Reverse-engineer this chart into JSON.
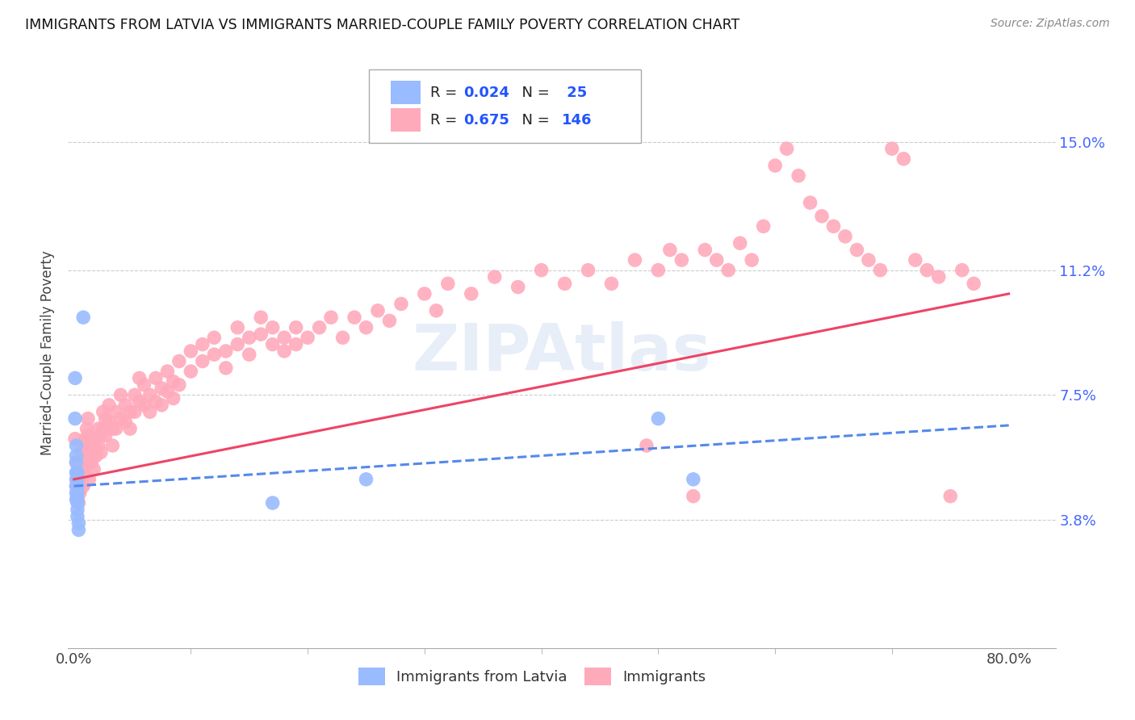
{
  "title": "IMMIGRANTS FROM LATVIA VS IMMIGRANTS MARRIED-COUPLE FAMILY POVERTY CORRELATION CHART",
  "source": "Source: ZipAtlas.com",
  "ylabel": "Married-Couple Family Poverty",
  "yticks": [
    "15.0%",
    "11.2%",
    "7.5%",
    "3.8%"
  ],
  "ytick_vals": [
    0.15,
    0.112,
    0.075,
    0.038
  ],
  "color_blue": "#99bbff",
  "color_pink": "#ffaabb",
  "color_trendline_blue": "#5588ee",
  "color_trendline_pink": "#ee4466",
  "watermark": "ZIPAtlas",
  "xmin": 0.0,
  "xmax": 0.8,
  "ymin": 0.0,
  "ymax": 0.175,
  "blue_scatter": [
    [
      0.001,
      0.08
    ],
    [
      0.001,
      0.068
    ],
    [
      0.002,
      0.06
    ],
    [
      0.002,
      0.057
    ],
    [
      0.002,
      0.055
    ],
    [
      0.002,
      0.052
    ],
    [
      0.002,
      0.05
    ],
    [
      0.002,
      0.048
    ],
    [
      0.002,
      0.046
    ],
    [
      0.002,
      0.044
    ],
    [
      0.003,
      0.052
    ],
    [
      0.003,
      0.05
    ],
    [
      0.003,
      0.048
    ],
    [
      0.003,
      0.046
    ],
    [
      0.003,
      0.044
    ],
    [
      0.003,
      0.043
    ],
    [
      0.003,
      0.041
    ],
    [
      0.003,
      0.039
    ],
    [
      0.004,
      0.037
    ],
    [
      0.004,
      0.035
    ],
    [
      0.008,
      0.098
    ],
    [
      0.17,
      0.043
    ],
    [
      0.25,
      0.05
    ],
    [
      0.5,
      0.068
    ],
    [
      0.53,
      0.05
    ]
  ],
  "pink_scatter": [
    [
      0.001,
      0.062
    ],
    [
      0.002,
      0.055
    ],
    [
      0.002,
      0.048
    ],
    [
      0.003,
      0.052
    ],
    [
      0.003,
      0.048
    ],
    [
      0.003,
      0.045
    ],
    [
      0.004,
      0.05
    ],
    [
      0.004,
      0.046
    ],
    [
      0.004,
      0.043
    ],
    [
      0.005,
      0.055
    ],
    [
      0.005,
      0.05
    ],
    [
      0.005,
      0.046
    ],
    [
      0.006,
      0.058
    ],
    [
      0.006,
      0.052
    ],
    [
      0.006,
      0.048
    ],
    [
      0.007,
      0.055
    ],
    [
      0.007,
      0.05
    ],
    [
      0.008,
      0.058
    ],
    [
      0.008,
      0.053
    ],
    [
      0.008,
      0.048
    ],
    [
      0.009,
      0.06
    ],
    [
      0.009,
      0.055
    ],
    [
      0.01,
      0.062
    ],
    [
      0.01,
      0.057
    ],
    [
      0.011,
      0.065
    ],
    [
      0.011,
      0.06
    ],
    [
      0.012,
      0.068
    ],
    [
      0.012,
      0.063
    ],
    [
      0.013,
      0.055
    ],
    [
      0.013,
      0.05
    ],
    [
      0.015,
      0.06
    ],
    [
      0.015,
      0.055
    ],
    [
      0.017,
      0.058
    ],
    [
      0.017,
      0.053
    ],
    [
      0.019,
      0.062
    ],
    [
      0.019,
      0.057
    ],
    [
      0.021,
      0.065
    ],
    [
      0.021,
      0.06
    ],
    [
      0.023,
      0.063
    ],
    [
      0.023,
      0.058
    ],
    [
      0.025,
      0.07
    ],
    [
      0.025,
      0.065
    ],
    [
      0.027,
      0.068
    ],
    [
      0.027,
      0.063
    ],
    [
      0.03,
      0.072
    ],
    [
      0.03,
      0.067
    ],
    [
      0.033,
      0.065
    ],
    [
      0.033,
      0.06
    ],
    [
      0.036,
      0.07
    ],
    [
      0.036,
      0.065
    ],
    [
      0.04,
      0.075
    ],
    [
      0.04,
      0.068
    ],
    [
      0.044,
      0.072
    ],
    [
      0.044,
      0.067
    ],
    [
      0.048,
      0.07
    ],
    [
      0.048,
      0.065
    ],
    [
      0.052,
      0.075
    ],
    [
      0.052,
      0.07
    ],
    [
      0.056,
      0.08
    ],
    [
      0.056,
      0.073
    ],
    [
      0.06,
      0.078
    ],
    [
      0.06,
      0.072
    ],
    [
      0.065,
      0.075
    ],
    [
      0.065,
      0.07
    ],
    [
      0.07,
      0.08
    ],
    [
      0.07,
      0.073
    ],
    [
      0.075,
      0.077
    ],
    [
      0.075,
      0.072
    ],
    [
      0.08,
      0.082
    ],
    [
      0.08,
      0.076
    ],
    [
      0.085,
      0.079
    ],
    [
      0.085,
      0.074
    ],
    [
      0.09,
      0.085
    ],
    [
      0.09,
      0.078
    ],
    [
      0.1,
      0.088
    ],
    [
      0.1,
      0.082
    ],
    [
      0.11,
      0.09
    ],
    [
      0.11,
      0.085
    ],
    [
      0.12,
      0.092
    ],
    [
      0.12,
      0.087
    ],
    [
      0.13,
      0.088
    ],
    [
      0.13,
      0.083
    ],
    [
      0.14,
      0.095
    ],
    [
      0.14,
      0.09
    ],
    [
      0.15,
      0.092
    ],
    [
      0.15,
      0.087
    ],
    [
      0.16,
      0.098
    ],
    [
      0.16,
      0.093
    ],
    [
      0.17,
      0.095
    ],
    [
      0.17,
      0.09
    ],
    [
      0.18,
      0.092
    ],
    [
      0.18,
      0.088
    ],
    [
      0.19,
      0.095
    ],
    [
      0.19,
      0.09
    ],
    [
      0.2,
      0.092
    ],
    [
      0.21,
      0.095
    ],
    [
      0.22,
      0.098
    ],
    [
      0.23,
      0.092
    ],
    [
      0.24,
      0.098
    ],
    [
      0.25,
      0.095
    ],
    [
      0.26,
      0.1
    ],
    [
      0.27,
      0.097
    ],
    [
      0.28,
      0.102
    ],
    [
      0.3,
      0.105
    ],
    [
      0.31,
      0.1
    ],
    [
      0.32,
      0.108
    ],
    [
      0.34,
      0.105
    ],
    [
      0.36,
      0.11
    ],
    [
      0.38,
      0.107
    ],
    [
      0.4,
      0.112
    ],
    [
      0.42,
      0.108
    ],
    [
      0.44,
      0.112
    ],
    [
      0.46,
      0.108
    ],
    [
      0.48,
      0.115
    ],
    [
      0.49,
      0.06
    ],
    [
      0.5,
      0.112
    ],
    [
      0.51,
      0.118
    ],
    [
      0.52,
      0.115
    ],
    [
      0.53,
      0.045
    ],
    [
      0.54,
      0.118
    ],
    [
      0.55,
      0.115
    ],
    [
      0.56,
      0.112
    ],
    [
      0.57,
      0.12
    ],
    [
      0.58,
      0.115
    ],
    [
      0.59,
      0.125
    ],
    [
      0.6,
      0.143
    ],
    [
      0.61,
      0.148
    ],
    [
      0.62,
      0.14
    ],
    [
      0.63,
      0.132
    ],
    [
      0.64,
      0.128
    ],
    [
      0.65,
      0.125
    ],
    [
      0.66,
      0.122
    ],
    [
      0.67,
      0.118
    ],
    [
      0.68,
      0.115
    ],
    [
      0.69,
      0.112
    ],
    [
      0.7,
      0.148
    ],
    [
      0.71,
      0.145
    ],
    [
      0.72,
      0.115
    ],
    [
      0.73,
      0.112
    ],
    [
      0.74,
      0.11
    ],
    [
      0.75,
      0.045
    ],
    [
      0.76,
      0.112
    ],
    [
      0.77,
      0.108
    ]
  ]
}
